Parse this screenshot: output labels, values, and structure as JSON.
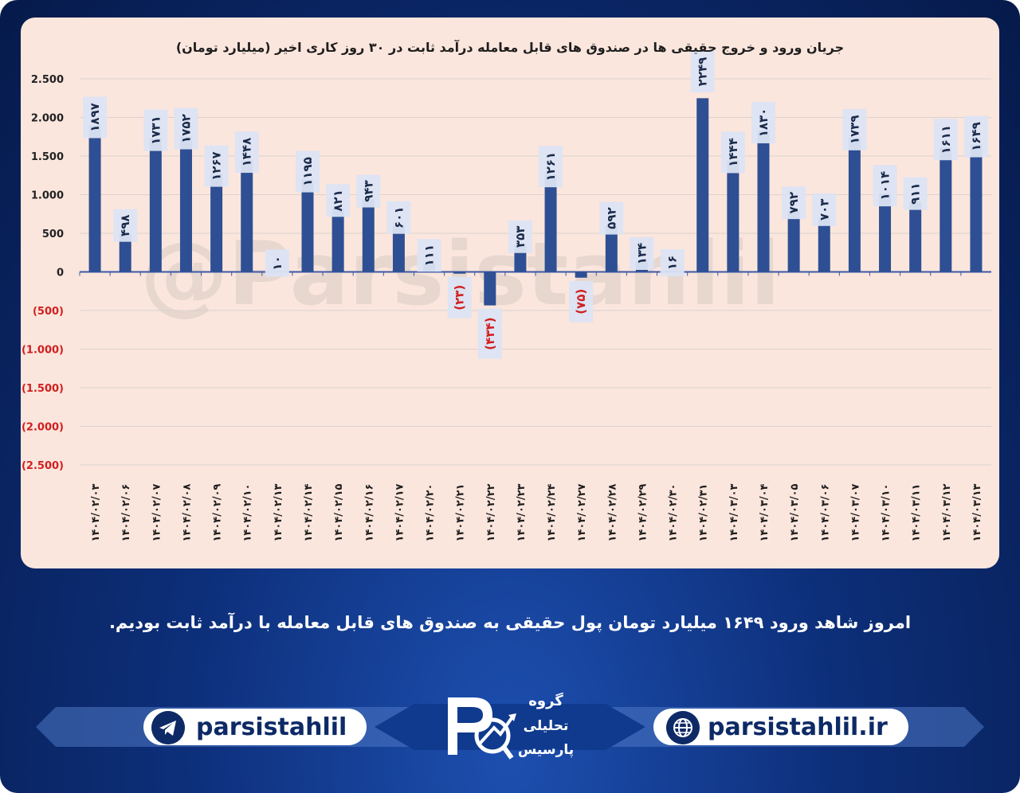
{
  "chart_data": {
    "type": "bar",
    "title": "جریان ورود و خروج حقیقی ها در صندوق های قابل معامله درآمد ثابت در ۳۰ روز کاری اخیر (میلیارد تومان)",
    "categories": [
      "۱۴۰۴/۰۲/۰۳",
      "۱۴۰۴/۰۲/۰۶",
      "۱۴۰۴/۰۲/۰۷",
      "۱۴۰۴/۰۲/۰۸",
      "۱۴۰۴/۰۲/۰۹",
      "۱۴۰۴/۰۲/۱۰",
      "۱۴۰۴/۰۲/۱۳",
      "۱۴۰۴/۰۲/۱۴",
      "۱۴۰۴/۰۲/۱۵",
      "۱۴۰۴/۰۲/۱۶",
      "۱۴۰۴/۰۲/۱۷",
      "۱۴۰۴/۰۲/۲۰",
      "۱۴۰۴/۰۲/۲۱",
      "۱۴۰۴/۰۲/۲۲",
      "۱۴۰۴/۰۲/۲۳",
      "۱۴۰۴/۰۲/۲۴",
      "۱۴۰۴/۰۲/۲۷",
      "۱۴۰۴/۰۲/۲۸",
      "۱۴۰۴/۰۲/۲۹",
      "۱۴۰۴/۰۲/۳۰",
      "۱۴۰۴/۰۲/۳۱",
      "۱۴۰۴/۰۳/۰۳",
      "۱۴۰۴/۰۳/۰۴",
      "۱۴۰۴/۰۳/۰۵",
      "۱۴۰۴/۰۳/۰۶",
      "۱۴۰۴/۰۳/۰۷",
      "۱۴۰۴/۰۳/۱۰",
      "۱۴۰۴/۰۳/۱۱",
      "۱۴۰۴/۰۳/۱۲",
      "۱۴۰۴/۰۳/۱۳"
    ],
    "values": [
      1897,
      498,
      1731,
      1752,
      1267,
      1448,
      10,
      1195,
      821,
      943,
      601,
      111,
      -23,
      -434,
      353,
      1261,
      -75,
      592,
      134,
      16,
      2249,
      1444,
      1830,
      792,
      703,
      1739,
      1014,
      911,
      1611,
      1649
    ],
    "data_labels": [
      "۱۸۹۷",
      "۴۹۸",
      "۱۷۳۱",
      "۱۷۵۲",
      "۱۲۶۷",
      "۱۴۴۸",
      "۱۰",
      "۱۱۹۵",
      "۸۲۱",
      "۹۴۳",
      "۶۰۱",
      "۱۱۱",
      "(۲۳)",
      "(۴۳۴)",
      "۳۵۳",
      "۱۲۶۱",
      "(۷۵)",
      "۵۹۲",
      "۱۳۴",
      "۱۶",
      "۲۲۴۹",
      "۱۴۴۴",
      "۱۸۳۰",
      "۷۹۲",
      "۷۰۳",
      "۱۷۳۹",
      "۱۰۱۴",
      "۹۱۱",
      "۱۶۱۱",
      "۱۶۴۹"
    ],
    "yticks": [
      2500,
      2000,
      1500,
      1000,
      500,
      0,
      -500,
      -1000,
      -1500,
      -2000,
      -2500
    ],
    "ytick_labels": [
      "2.500",
      "2.000",
      "1.500",
      "1.000",
      "500",
      "0",
      "(500)",
      "(1.000)",
      "(1.500)",
      "(2.000)",
      "(2.500)"
    ],
    "ylim": [
      -2500,
      2500
    ],
    "grid": true,
    "colors": {
      "bar": "#2e4f93",
      "label_box": "#dce4f3",
      "negative_text": "#d11f1f",
      "positive_text": "#1a2a4a",
      "axis": "#3b5aa6",
      "grid": "#d9d2cf"
    },
    "watermark": "@Parsistahlil"
  },
  "caption": "امروز شاهد ورود ۱۶۴۹ میلیارد تومان پول حقیقی به صندوق های قابل معامله با درآمد ثابت بودیم.",
  "footer": {
    "telegram": "parsistahlil",
    "website": "parsistahlil.ir",
    "logo_line1": "گروه",
    "logo_line2": "تحلیلی",
    "logo_line3": "پارسیس"
  }
}
